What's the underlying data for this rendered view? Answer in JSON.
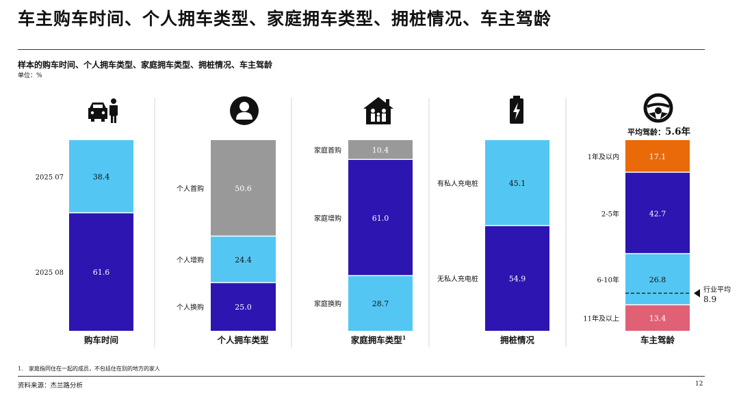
{
  "title": "车主购车时间、个人拥车类型、家庭拥车类型、拥桩情况、车主驾龄",
  "subtitle": "样本的购车时间、个人拥车类型、家庭拥车类型、拥桩情况、车主驾龄",
  "unit": "单位：%",
  "footnote_number": "1.",
  "footnote": "家庭指同住在一起的成员，不包括住在别的地方的家人",
  "source": "资料来源：杰兰路分析",
  "page_number": "12",
  "icons": [
    "car-buyer-icon",
    "person-icon",
    "family-home-icon",
    "battery-charging-icon",
    "steering-wheel-icon"
  ],
  "chart_data": [
    {
      "type": "bar",
      "stacked": true,
      "label": "购车时间",
      "categories": [
        "2025 07",
        "2025 08"
      ],
      "values": [
        38.4,
        61.6
      ],
      "colors": [
        "#54c6f3",
        "#2c15b0"
      ]
    },
    {
      "type": "bar",
      "stacked": true,
      "label": "个人拥车类型",
      "categories": [
        "个人首购",
        "个人增购",
        "个人换购"
      ],
      "values": [
        50.6,
        24.4,
        25.0
      ],
      "colors": [
        "#999999",
        "#54c6f3",
        "#2c15b0"
      ]
    },
    {
      "type": "bar",
      "stacked": true,
      "label": "家庭拥车类型",
      "label_superscript": "1",
      "categories": [
        "家庭首购",
        "家庭增购",
        "家庭换购"
      ],
      "values": [
        10.4,
        61.0,
        28.7
      ],
      "colors": [
        "#999999",
        "#2c15b0",
        "#54c6f3"
      ]
    },
    {
      "type": "bar",
      "stacked": true,
      "label": "拥桩情况",
      "categories": [
        "有私人充电桩",
        "无私人充电桩"
      ],
      "values": [
        45.1,
        54.9
      ],
      "colors": [
        "#54c6f3",
        "#2c15b0"
      ]
    },
    {
      "type": "bar",
      "stacked": true,
      "label": "车主驾龄",
      "categories": [
        "1年及以内",
        "2-5年",
        "6-10年",
        "11年及以上"
      ],
      "values": [
        17.1,
        42.7,
        26.8,
        13.4
      ],
      "colors": [
        "#ea6a0a",
        "#2c15b0",
        "#54c6f3",
        "#e06176"
      ],
      "average_label": "平均驾龄：",
      "average_value": "5.6年",
      "reference_label": "行业平均",
      "reference_value": 8.9
    }
  ]
}
